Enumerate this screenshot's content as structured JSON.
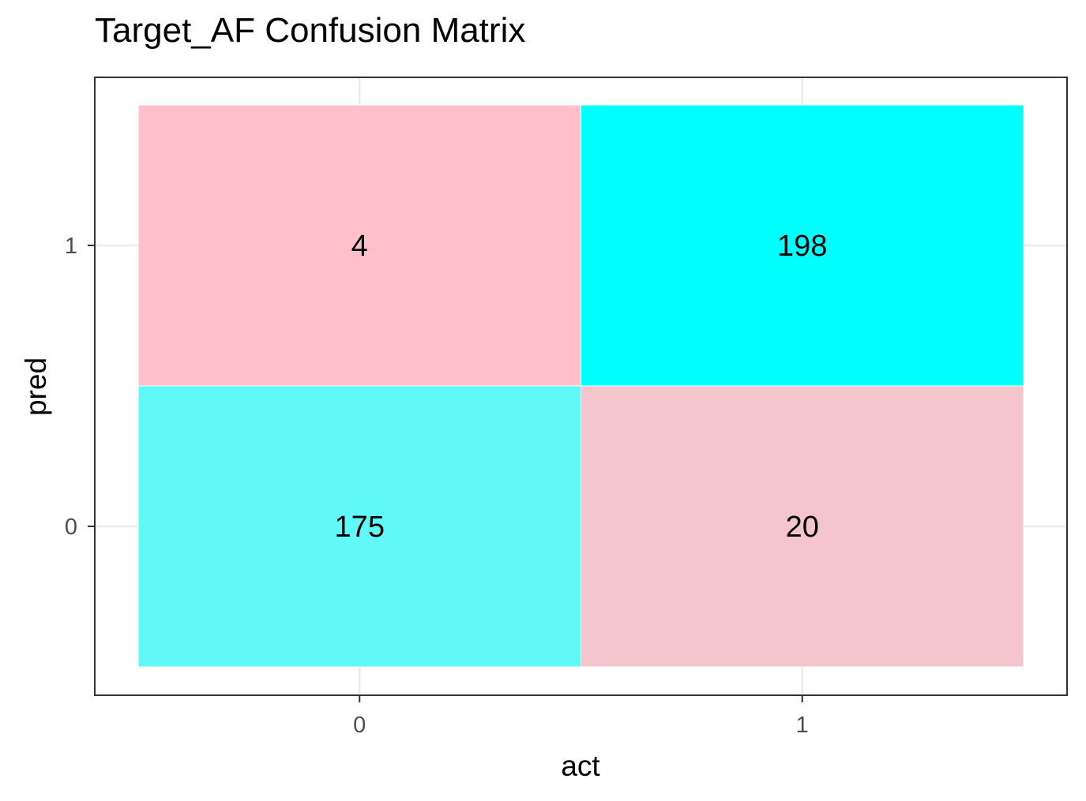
{
  "chart_data": {
    "type": "heatmap",
    "title": "Target_AF Confusion Matrix",
    "xlabel": "act",
    "ylabel": "pred",
    "x_categories": [
      "0",
      "1"
    ],
    "y_categories": [
      "0",
      "1"
    ],
    "cells": [
      {
        "act": "0",
        "pred": "1",
        "value": 4,
        "label": "4",
        "color": "#FFC0CB"
      },
      {
        "act": "1",
        "pred": "1",
        "value": 198,
        "label": "198",
        "color": "#00FFFF"
      },
      {
        "act": "0",
        "pred": "0",
        "value": 175,
        "label": "175",
        "color": "#61F8F8"
      },
      {
        "act": "1",
        "pred": "0",
        "value": 20,
        "label": "20",
        "color": "#F4C5CD"
      }
    ],
    "grid": true,
    "legend": "none"
  }
}
